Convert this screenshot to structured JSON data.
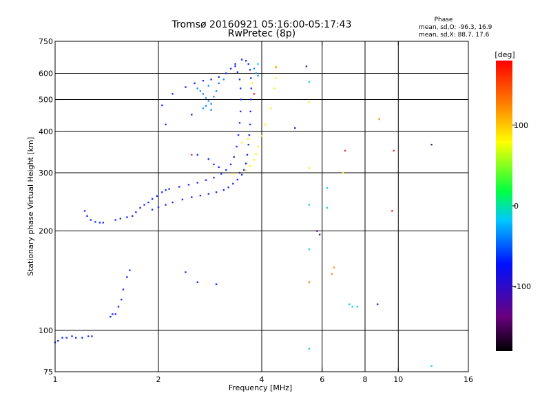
{
  "chart_data": {
    "type": "scatter",
    "title": "Tromsø 20160921 05:16:00-05:17:43",
    "subtitle": "RwPretec (8p)",
    "xlabel": "Frequency [MHz]",
    "ylabel": "Stationary phase Virtual Height [km]",
    "xscale": "log",
    "yscale": "log",
    "xlim": [
      1,
      16
    ],
    "ylim": [
      75,
      750
    ],
    "xticks": [
      1,
      2,
      4,
      6,
      8,
      10,
      16
    ],
    "yticks": [
      75,
      100,
      200,
      300,
      400,
      500,
      600,
      750
    ],
    "xgrid": [
      2,
      4,
      6,
      8,
      10
    ],
    "ygrid": [
      100,
      200,
      300,
      400,
      500,
      600
    ],
    "phase_stats": {
      "heading": "Phase",
      "line_o": "mean, sd,O: -96.3, 16.9",
      "line_x": "mean, sd,X:  88.7, 17.6"
    },
    "colorbar": {
      "label": "[deg]",
      "range": [
        -180,
        180
      ],
      "ticks": [
        100,
        0,
        -100
      ],
      "stops": [
        "#000000",
        "#6a0080",
        "#0010ff",
        "#00c8ff",
        "#00ff40",
        "#ffff00",
        "#ff8000",
        "#ff0000"
      ]
    },
    "series": [
      {
        "color": "#1c2cff",
        "points": [
          [
            1.0,
            92
          ],
          [
            1.02,
            93
          ],
          [
            1.05,
            95
          ],
          [
            1.08,
            95
          ],
          [
            1.12,
            96
          ],
          [
            1.15,
            95
          ],
          [
            1.2,
            95
          ],
          [
            1.25,
            96
          ],
          [
            1.28,
            96
          ],
          [
            1.22,
            230
          ],
          [
            1.24,
            222
          ],
          [
            1.27,
            216
          ],
          [
            1.31,
            213
          ],
          [
            1.35,
            212
          ],
          [
            1.38,
            212
          ],
          [
            1.45,
            110
          ],
          [
            1.47,
            112
          ],
          [
            1.5,
            112
          ],
          [
            1.53,
            118
          ],
          [
            1.56,
            124
          ],
          [
            1.58,
            133
          ],
          [
            1.62,
            145
          ],
          [
            1.65,
            152
          ],
          [
            1.5,
            216
          ],
          [
            1.55,
            218
          ],
          [
            1.62,
            220
          ],
          [
            1.68,
            222
          ],
          [
            1.72,
            228
          ],
          [
            1.77,
            235
          ],
          [
            1.82,
            240
          ],
          [
            1.87,
            244
          ],
          [
            1.92,
            250
          ],
          [
            1.98,
            255
          ],
          [
            2.05,
            262
          ],
          [
            2.1,
            266
          ],
          [
            2.15,
            268
          ],
          [
            1.92,
            232
          ],
          [
            2.0,
            236
          ],
          [
            2.1,
            240
          ],
          [
            2.2,
            244
          ],
          [
            2.35,
            249
          ],
          [
            2.5,
            253
          ],
          [
            2.65,
            256
          ],
          [
            2.8,
            259
          ],
          [
            2.95,
            262
          ],
          [
            3.1,
            266
          ],
          [
            3.2,
            271
          ],
          [
            3.3,
            278
          ],
          [
            3.4,
            286
          ],
          [
            3.5,
            296
          ],
          [
            3.55,
            306
          ],
          [
            3.6,
            320
          ],
          [
            3.63,
            340
          ],
          [
            3.66,
            365
          ],
          [
            3.68,
            390
          ],
          [
            3.7,
            420
          ],
          [
            3.71,
            460
          ],
          [
            3.72,
            500
          ],
          [
            3.73,
            540
          ],
          [
            3.72,
            580
          ],
          [
            3.7,
            615
          ],
          [
            3.66,
            640
          ],
          [
            3.6,
            655
          ],
          [
            3.5,
            660
          ],
          [
            2.3,
            272
          ],
          [
            2.45,
            276
          ],
          [
            2.6,
            280
          ],
          [
            2.75,
            285
          ],
          [
            2.9,
            290
          ],
          [
            3.05,
            298
          ],
          [
            3.15,
            306
          ],
          [
            3.25,
            318
          ],
          [
            3.32,
            335
          ],
          [
            3.38,
            360
          ],
          [
            3.42,
            390
          ],
          [
            3.45,
            425
          ],
          [
            3.47,
            460
          ],
          [
            3.48,
            500
          ],
          [
            3.47,
            540
          ],
          [
            3.45,
            575
          ],
          [
            3.4,
            605
          ],
          [
            3.35,
            630
          ],
          [
            2.05,
            480
          ],
          [
            2.2,
            520
          ],
          [
            2.4,
            545
          ],
          [
            2.55,
            560
          ],
          [
            2.7,
            570
          ],
          [
            2.85,
            575
          ],
          [
            3.0,
            585
          ],
          [
            3.15,
            600
          ],
          [
            3.25,
            620
          ],
          [
            3.35,
            640
          ],
          [
            2.6,
            340
          ],
          [
            2.8,
            330
          ],
          [
            2.9,
            318
          ],
          [
            3.0,
            312
          ],
          [
            2.1,
            420
          ],
          [
            2.5,
            450
          ],
          [
            2.6,
            140
          ],
          [
            2.95,
            138
          ],
          [
            2.4,
            150
          ],
          [
            5.0,
            410
          ],
          [
            8.7,
            120
          ]
        ]
      },
      {
        "color": "#1a8cff",
        "points": [
          [
            2.6,
            540
          ],
          [
            2.7,
            520
          ],
          [
            2.75,
            505
          ],
          [
            2.8,
            495
          ],
          [
            2.85,
            485
          ],
          [
            2.75,
            478
          ],
          [
            2.7,
            470
          ],
          [
            2.9,
            510
          ],
          [
            2.95,
            530
          ],
          [
            2.8,
            550
          ],
          [
            3.0,
            560
          ],
          [
            2.65,
            530
          ],
          [
            2.85,
            465
          ],
          [
            3.1,
            575
          ],
          [
            3.8,
            620
          ],
          [
            3.85,
            600
          ],
          [
            3.9,
            590
          ]
        ]
      },
      {
        "color": "#16d0ff",
        "points": [
          [
            5.5,
            565
          ],
          [
            5.5,
            240
          ],
          [
            5.5,
            176
          ],
          [
            6.2,
            270
          ],
          [
            6.2,
            235
          ],
          [
            7.2,
            120
          ],
          [
            7.35,
            118
          ],
          [
            7.6,
            118
          ],
          [
            5.5,
            88
          ],
          [
            12.5,
            78
          ],
          [
            3.9,
            640
          ]
        ]
      },
      {
        "color": "#ffef1a",
        "points": [
          [
            3.3,
            298
          ],
          [
            3.45,
            300
          ],
          [
            3.6,
            305
          ],
          [
            3.7,
            315
          ],
          [
            3.8,
            328
          ],
          [
            3.85,
            342
          ],
          [
            3.9,
            360
          ],
          [
            4.0,
            388
          ],
          [
            4.1,
            420
          ],
          [
            4.25,
            470
          ],
          [
            4.35,
            540
          ],
          [
            4.4,
            580
          ],
          [
            3.5,
            370
          ],
          [
            3.65,
            380
          ],
          [
            4.4,
            630
          ],
          [
            3.75,
            560
          ],
          [
            5.5,
            310
          ],
          [
            5.5,
            490
          ],
          [
            6.9,
            300
          ]
        ]
      },
      {
        "color": "#ff8a1a",
        "points": [
          [
            6.5,
            155
          ],
          [
            6.4,
            148
          ],
          [
            4.4,
            625
          ],
          [
            8.8,
            436
          ],
          [
            5.5,
            140
          ]
        ]
      },
      {
        "color": "#ff2828",
        "points": [
          [
            7.0,
            350
          ],
          [
            9.7,
            350
          ],
          [
            9.6,
            230
          ],
          [
            2.5,
            340
          ],
          [
            3.8,
            520
          ]
        ]
      },
      {
        "color": "#4a1a90",
        "points": [
          [
            5.8,
            200
          ],
          [
            5.9,
            195
          ],
          [
            5.4,
            630
          ],
          [
            12.5,
            365
          ],
          [
            3.45,
            300
          ]
        ]
      }
    ]
  }
}
